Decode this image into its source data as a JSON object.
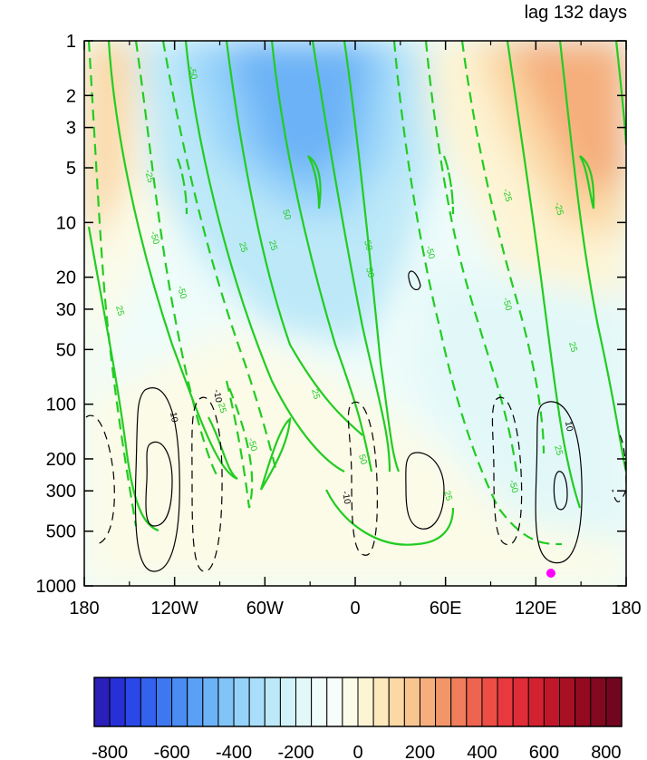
{
  "chart_data": {
    "type": "heatmap",
    "title": "lag 132 days",
    "xlabel": "",
    "ylabel": "",
    "x_ticks": [
      {
        "value": -180,
        "label": "180"
      },
      {
        "value": -120,
        "label": "120W"
      },
      {
        "value": -60,
        "label": "60W"
      },
      {
        "value": 0,
        "label": "0"
      },
      {
        "value": 60,
        "label": "60E"
      },
      {
        "value": 120,
        "label": "120E"
      },
      {
        "value": 180,
        "label": "180"
      }
    ],
    "xlim": [
      -180,
      180
    ],
    "y_scale": "log",
    "y_inverted": true,
    "ylim": [
      1000,
      1
    ],
    "y_ticks": [
      {
        "value": 1,
        "label": "1"
      },
      {
        "value": 2,
        "label": "2"
      },
      {
        "value": 3,
        "label": "3"
      },
      {
        "value": 5,
        "label": "5"
      },
      {
        "value": 10,
        "label": "10"
      },
      {
        "value": 20,
        "label": "20"
      },
      {
        "value": 30,
        "label": "30"
      },
      {
        "value": 50,
        "label": "50"
      },
      {
        "value": 100,
        "label": "100"
      },
      {
        "value": 200,
        "label": "200"
      },
      {
        "value": 300,
        "label": "300"
      },
      {
        "value": 500,
        "label": "500"
      },
      {
        "value": 1000,
        "label": "1000"
      }
    ],
    "colorbar": {
      "orientation": "horizontal",
      "levels": [
        -850,
        -800,
        -750,
        -700,
        -650,
        -600,
        -550,
        -500,
        -450,
        -400,
        -350,
        -300,
        -250,
        -200,
        -150,
        -100,
        -50,
        0,
        50,
        100,
        150,
        200,
        250,
        300,
        350,
        400,
        450,
        500,
        550,
        600,
        650,
        700,
        750,
        800,
        850
      ],
      "colors": [
        "#2a1fb8",
        "#2630d6",
        "#2a48e8",
        "#3362ee",
        "#3d78f0",
        "#4a8cf2",
        "#5aa0f4",
        "#6cb2f6",
        "#80c4f8",
        "#94d2fa",
        "#a8def9",
        "#bce8f8",
        "#d0f2f8",
        "#e2f8f8",
        "#eefcfa",
        "#f6fdfa",
        "#fbfbe8",
        "#fdf4d4",
        "#fde8bc",
        "#fbd8a4",
        "#f8c490",
        "#f5ae7c",
        "#f2966a",
        "#f07e5c",
        "#ee6450",
        "#ec4e46",
        "#e83a3e",
        "#e02c36",
        "#d22230",
        "#c0182a",
        "#a81024",
        "#940a20",
        "#820820",
        "#720620"
      ],
      "tick_values": [
        -800,
        -600,
        -400,
        -200,
        0,
        200,
        400,
        600,
        800
      ],
      "tick_labels": [
        "-800",
        "-600",
        "-400",
        "-200",
        "0",
        "200",
        "400",
        "600",
        "800"
      ]
    },
    "fill_field": "zonally varying wave pattern, negative (blue) centered near 30W upper levels, positive (orange) near 150E upper levels",
    "green_contour_labels": [
      "-50",
      "-25",
      "25",
      "50",
      "-50",
      "25",
      "25",
      "-25",
      "50",
      "-50",
      "25",
      "50",
      "-25",
      "-50",
      "50",
      "25",
      "-50",
      "-25",
      "25",
      "25",
      "-50",
      "-50"
    ],
    "black_contour_labels": [
      "10",
      "-10",
      "-10",
      "10"
    ],
    "marker": {
      "lon": 130,
      "pressure": 900,
      "color": "#ff00ff"
    }
  }
}
